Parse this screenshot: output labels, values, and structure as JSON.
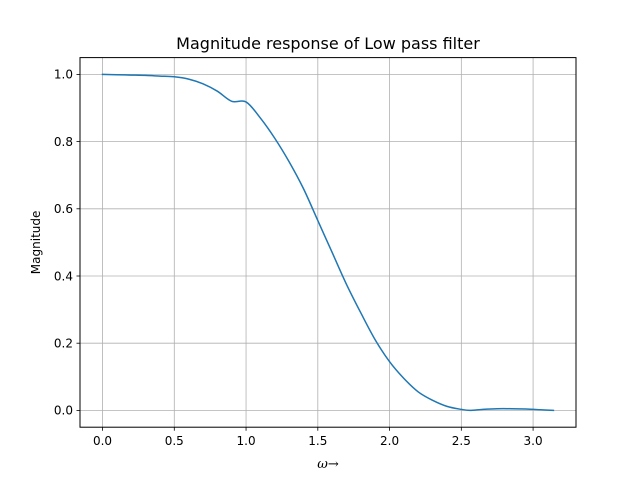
{
  "chart_data": {
    "type": "line",
    "title": "Magnitude response of Low pass filter",
    "xlabel": "ω→",
    "ylabel": "Magnitude",
    "xlim": [
      -0.157,
      3.299
    ],
    "ylim": [
      -0.05,
      1.05
    ],
    "xticks": [
      "0.0",
      "0.5",
      "1.0",
      "1.5",
      "2.0",
      "2.5",
      "3.0"
    ],
    "yticks": [
      "0.0",
      "0.2",
      "0.4",
      "0.6",
      "0.8",
      "1.0"
    ],
    "grid": true,
    "series": [
      {
        "color": "#1f77b4",
        "x": [
          0.0,
          0.1,
          0.2,
          0.3,
          0.4,
          0.5,
          0.6,
          0.7,
          0.8,
          0.9,
          1.0,
          1.1,
          1.2,
          1.3,
          1.4,
          1.5,
          1.6,
          1.7,
          1.8,
          1.9,
          2.0,
          2.1,
          2.2,
          2.3,
          2.4,
          2.5,
          2.56,
          2.65,
          2.75,
          2.85,
          2.95,
          3.05,
          3.1416
        ],
        "y": [
          1.0,
          0.999,
          0.998,
          0.997,
          0.995,
          0.993,
          0.986,
          0.972,
          0.95,
          0.92,
          0.918,
          0.87,
          0.81,
          0.74,
          0.66,
          0.565,
          0.47,
          0.375,
          0.29,
          0.21,
          0.145,
          0.095,
          0.055,
          0.03,
          0.012,
          0.003,
          0.0,
          0.003,
          0.005,
          0.005,
          0.004,
          0.002,
          0.0
        ]
      }
    ]
  }
}
